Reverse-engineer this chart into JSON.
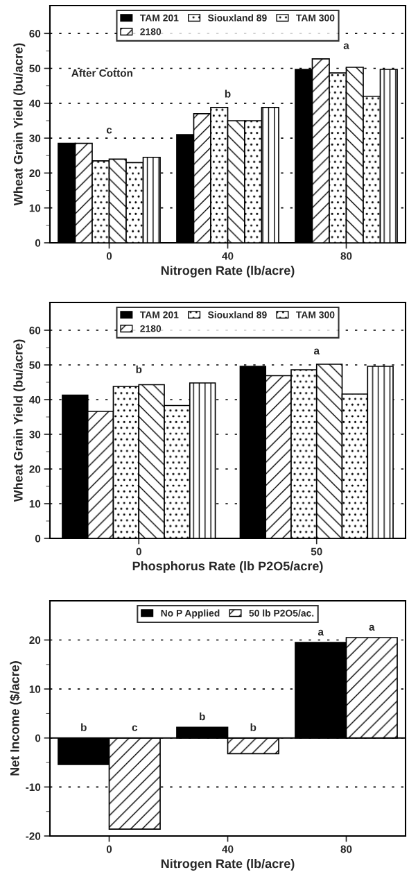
{
  "chart_data": [
    {
      "type": "bar",
      "xlabel": "Nitrogen Rate (lb/acre)",
      "ylabel": "Wheat Grain Yield (bu/acre)",
      "categories": [
        "0",
        "40",
        "80"
      ],
      "series": [
        {
          "name": "TAM 201",
          "color": "#000000",
          "values": [
            28.5,
            31,
            49.7
          ]
        },
        {
          "name": "2180",
          "color": "#000000",
          "values": [
            28.5,
            37,
            52.7
          ]
        },
        {
          "name": "Siouxland 89",
          "color": "#000000",
          "values": [
            23.5,
            38.8,
            48.7
          ]
        },
        {
          "color": "#000000",
          "values": [
            24,
            35,
            50.3
          ]
        },
        {
          "name": "TAM 300",
          "color": "#000000",
          "values": [
            23,
            35,
            42
          ]
        },
        {
          "color": "#000000",
          "values": [
            24.5,
            38.8,
            49.7
          ]
        }
      ],
      "ylim": [
        0,
        68
      ],
      "yticks": [
        0,
        10,
        20,
        30,
        40,
        50,
        60
      ],
      "grid": "y",
      "legend": "top",
      "annotations": [
        "After Cotton",
        "c",
        "b",
        "a"
      ]
    },
    {
      "type": "bar",
      "xlabel": "Phosphorus Rate (lb P2O5/acre)",
      "ylabel": "Wheat Grain Yield (bu/acre)",
      "categories": [
        "0",
        "50"
      ],
      "series": [
        {
          "name": "TAM 201",
          "color": "#000000",
          "values": [
            41.3,
            49.6
          ]
        },
        {
          "name": "2180",
          "color": "#000000",
          "values": [
            36.6,
            46.9
          ]
        },
        {
          "name": "Siouxland 89",
          "color": "#000000",
          "values": [
            43.8,
            48.6
          ]
        },
        {
          "color": "#000000",
          "values": [
            44.3,
            50.2
          ]
        },
        {
          "name": "TAM 300",
          "color": "#000000",
          "values": [
            38.3,
            41.6
          ]
        },
        {
          "color": "#000000",
          "values": [
            44.8,
            49.6
          ]
        }
      ],
      "ylim": [
        0,
        68
      ],
      "yticks": [
        0,
        10,
        20,
        30,
        40,
        50,
        60
      ],
      "grid": "y",
      "legend": "top",
      "annotations": [
        "b",
        "a"
      ]
    },
    {
      "type": "bar",
      "xlabel": "Nitrogen Rate (lb/acre)",
      "ylabel": "Net Income ($/acre)",
      "categories": [
        "0",
        "40",
        "80"
      ],
      "series": [
        {
          "name": "No P Applied",
          "color": "#000000",
          "values": [
            -5.4,
            2.2,
            19.5
          ],
          "value_labels": [
            "b",
            "b",
            "a"
          ]
        },
        {
          "name": "50 lb P2O5/ac.",
          "color": "#000000",
          "values": [
            -18.6,
            -3.2,
            20.5
          ],
          "value_labels": [
            "c",
            "b",
            "a"
          ]
        }
      ],
      "ylim": [
        -20,
        28
      ],
      "yticks": [
        -20,
        -10,
        0,
        10,
        20
      ],
      "grid": "y",
      "legend": "top"
    }
  ]
}
